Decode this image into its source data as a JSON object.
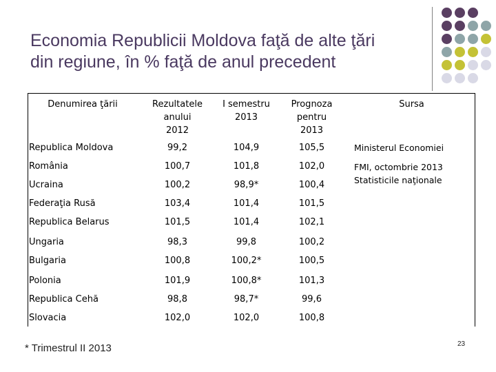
{
  "slide": {
    "title_line1": "Economia Republicii Moldova faţă de alte ţări",
    "title_line2": "din regiune, în % faţă de anul precedent",
    "footnote": "* Trimestrul II 2013",
    "page_number": "23",
    "colors": {
      "title": "#4a3960",
      "dot_purple": "#5a3f62",
      "dot_gray": "#8ea5a8",
      "dot_olive": "#c4c236",
      "dot_light": "#d9d9e6"
    }
  },
  "table": {
    "headers": {
      "country": "Denumirea ţării",
      "col2012": "Rezultatele\nanului\n2012",
      "col2013": "I semestru\n2013",
      "forecast": "Prognoza\npentru\n2013",
      "source": "Sursa"
    },
    "rows": [
      {
        "country": "Republica Moldova",
        "v2012": "99,2",
        "v2013": "104,9",
        "forecast": "105,5"
      },
      {
        "country": "România",
        "v2012": "100,7",
        "v2013": "101,8",
        "forecast": "102,0"
      },
      {
        "country": "Ucraina",
        "v2012": "100,2",
        "v2013": "98,9*",
        "forecast": "100,4"
      },
      {
        "country": "Federaţia Rusă",
        "v2012": "103,4",
        "v2013": "101,4",
        "forecast": "101,5"
      },
      {
        "country": "Republica Belarus",
        "v2012": "101,5",
        "v2013": "101,4",
        "forecast": "102,1"
      },
      {
        "country": "Ungaria",
        "v2012": "98,3",
        "v2013": "99,8",
        "forecast": "100,2"
      },
      {
        "country": "Bulgaria",
        "v2012": "100,8",
        "v2013": "100,2*",
        "forecast": "100,5"
      },
      {
        "country": "Polonia",
        "v2012": "101,9",
        "v2013": "100,8*",
        "forecast": "101,3"
      },
      {
        "country": "Republica Cehă",
        "v2012": "98,8",
        "v2013": "98,7*",
        "forecast": "99,6"
      },
      {
        "country": "Slovacia",
        "v2012": "102,0",
        "v2013": "102,0",
        "forecast": "100,8"
      }
    ],
    "sources": {
      "source1": "Ministerul Economiei",
      "source2_line1": "FMI, octombrie 2013",
      "source2_line2": "Statisticile naţionale"
    }
  }
}
